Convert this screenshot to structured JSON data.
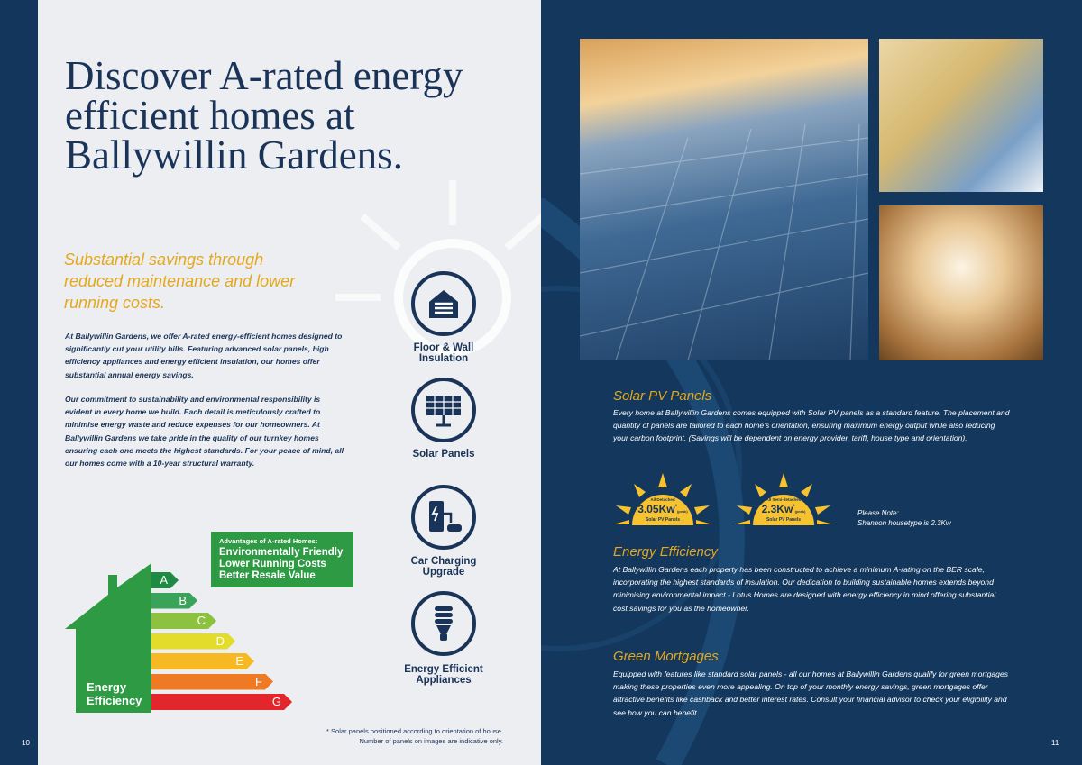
{
  "left_page": {
    "title": "Discover A-rated energy efficient homes at Ballywillin Gardens.",
    "subtitle": "Substantial savings through reduced maintenance and lower running costs.",
    "paragraphs": [
      "At Ballywillin Gardens, we offer A-rated energy-efficient homes designed to significantly cut your utility bills. Featuring advanced solar panels, high efficiency appliances and energy efficient insulation, our homes offer substantial annual energy savings.",
      "Our commitment to sustainability and environmental responsibility is evident in every home we build. Each detail is meticulously crafted to minimise energy waste and reduce expenses for our homeowners. At Ballywillin Gardens we take pride in the quality of our turnkey homes ensuring each one meets the highest standards. For your peace of mind, all our homes come with a 10-year structural warranty."
    ],
    "features": [
      {
        "label": "Floor & Wall Insulation",
        "icon": "house-insulation-icon"
      },
      {
        "label": "Solar Panels",
        "icon": "solar-panel-icon"
      },
      {
        "label": "Car Charging Upgrade",
        "icon": "ev-charger-icon"
      },
      {
        "label": "Energy Efficient Appliances",
        "icon": "light-bulb-icon"
      }
    ],
    "energy_label": "Energy Efficiency",
    "ratings": [
      "A",
      "B",
      "C",
      "D",
      "E",
      "F",
      "G"
    ],
    "rating_colors": [
      "#1f8a44",
      "#3aa35a",
      "#8cc23f",
      "#e3dc2a",
      "#f6b823",
      "#ee7a24",
      "#e2262c"
    ],
    "advantages": {
      "heading": "Advantages of A-rated Homes:",
      "items": [
        "Environmentally Friendly",
        "Lower Running Costs",
        "Better Resale Value"
      ]
    },
    "footnote": [
      "* Solar panels positioned according to orientation of house.",
      "Number of panels on images are indicative only."
    ],
    "page_number": "10"
  },
  "right_page": {
    "sections": [
      {
        "heading": "Solar PV Panels",
        "text": "Every home at Ballywillin Gardens comes equipped with Solar PV panels as a standard feature. The placement and quantity of panels are tailored to each home's orientation, ensuring maximum energy output while also reducing your carbon footprint. (Savings will be dependent on energy provider, tariff, house type and orientation)."
      },
      {
        "heading": "Energy Efficiency",
        "text": "At Ballywillin Gardens each property has been constructed to achieve a minimum A-rating on the BER scale, incorporating the highest standards of insulation. Our dedication to building sustainable homes extends beyond minimising environmental impact - Lotus Homes are designed with energy efficiency in mind offering substantial cost savings for you as the homeowner."
      },
      {
        "heading": "Green Mortgages",
        "text": "Equipped with features like standard solar panels - all our homes at Ballywillin Gardens qualify for green mortgages making these properties even more appealing. On top of your monthly energy savings, green mortgages offer attractive benefits like cashback and better interest rates. Consult your financial advisor to check your eligibility and see how you can benefit."
      }
    ],
    "badges": [
      {
        "top": "All Detached",
        "value": "3.05Kw",
        "sup": "*",
        "unit": "(peak)",
        "bottom": "Solar PV Panels"
      },
      {
        "top": "All Semi-detached",
        "value": "2.3Kw",
        "sup": "*",
        "unit": "(peak)",
        "bottom": "Solar PV Panels"
      }
    ],
    "note": [
      "Please Note:",
      "Shannon housetype is 2.3Kw"
    ],
    "page_number": "11"
  },
  "colors": {
    "navy": "#14385d",
    "gold": "#e3a820",
    "green": "#2e9a44",
    "page": "#eceef1"
  }
}
